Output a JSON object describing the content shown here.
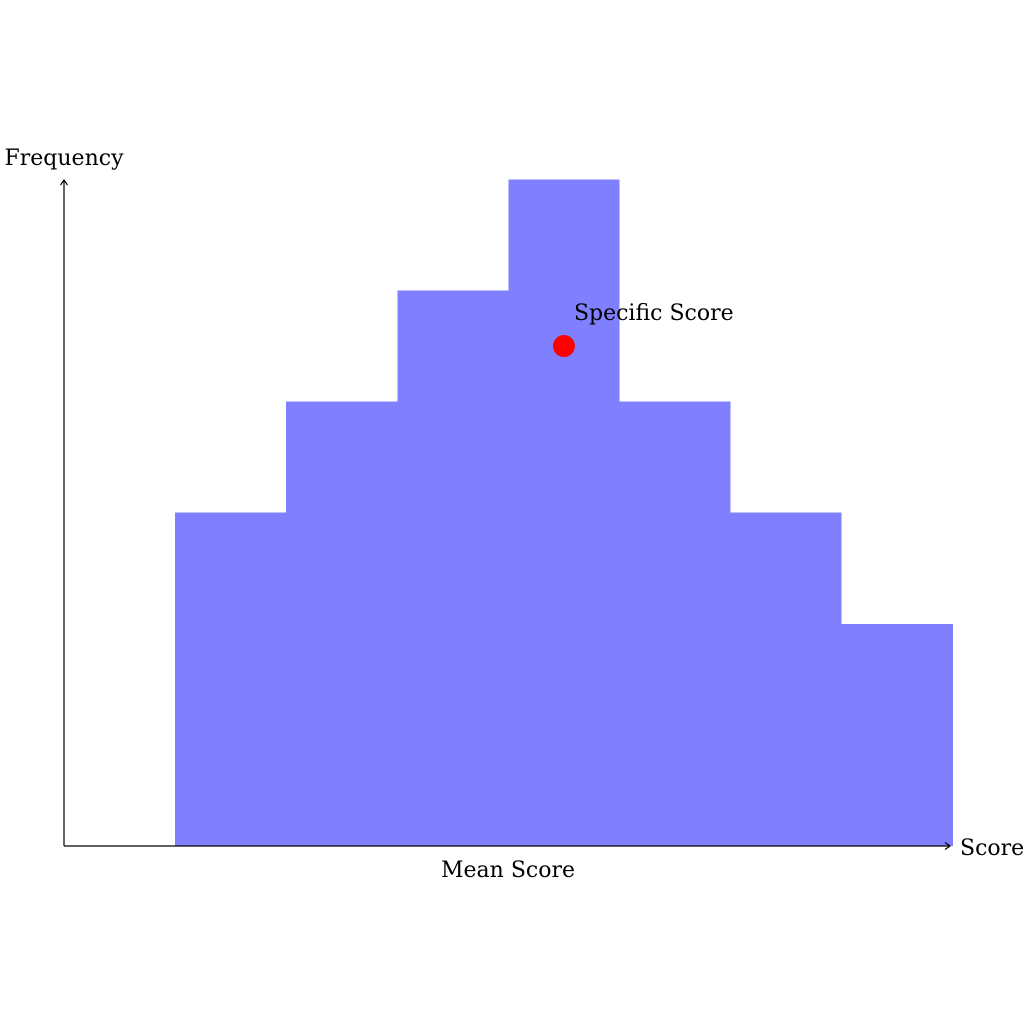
{
  "chart_data": {
    "type": "bar",
    "title": "",
    "xlabel": "Score",
    "ylabel": "Frequency",
    "x_axis_caption": "Mean Score",
    "bars": [
      {
        "x_start": 1,
        "x_end": 2,
        "value": 3
      },
      {
        "x_start": 2,
        "x_end": 3,
        "value": 4
      },
      {
        "x_start": 3,
        "x_end": 4,
        "value": 5
      },
      {
        "x_start": 4,
        "x_end": 5,
        "value": 6
      },
      {
        "x_start": 5,
        "x_end": 6,
        "value": 4
      },
      {
        "x_start": 6,
        "x_end": 7,
        "value": 3
      },
      {
        "x_start": 7,
        "x_end": 8,
        "value": 2
      }
    ],
    "xlim": [
      0,
      8
    ],
    "ylim": [
      0,
      6
    ],
    "grid": false,
    "marker": {
      "label": "Specific Score",
      "x": 4.5,
      "y": 4.5
    },
    "colors": {
      "bar": "#8080ff",
      "marker": "#ff0000",
      "axis": "#000000"
    }
  }
}
